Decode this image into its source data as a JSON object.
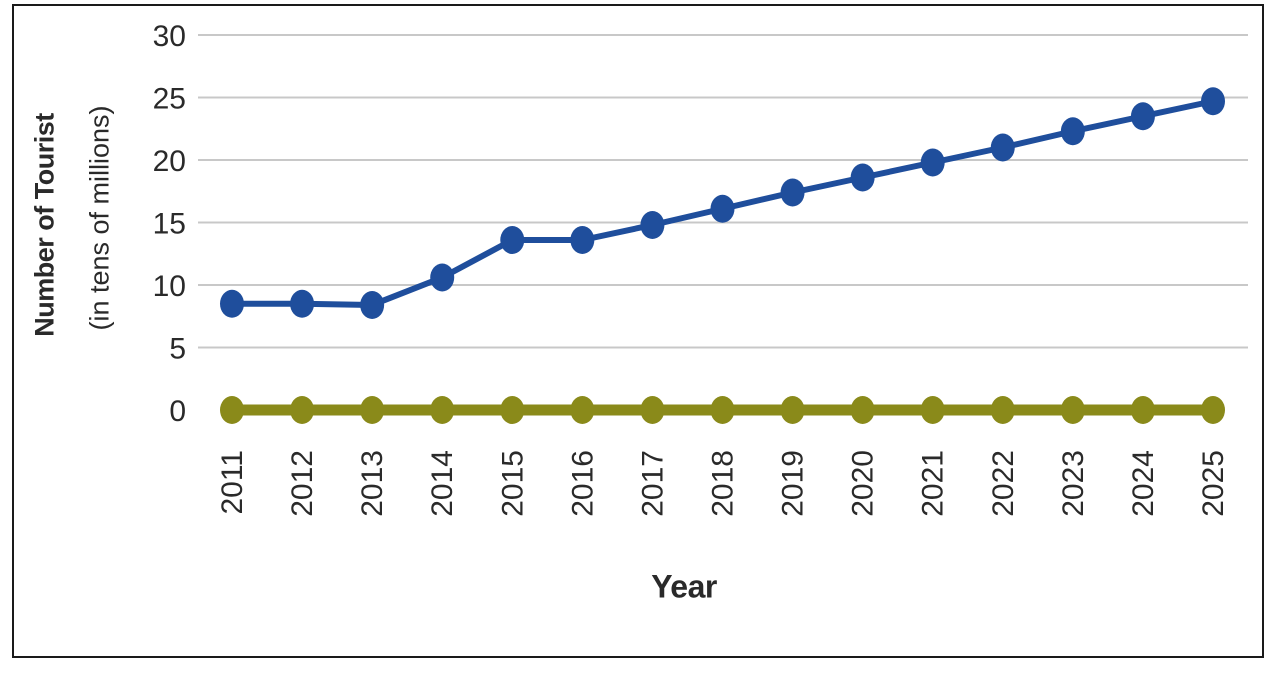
{
  "chart_data": {
    "type": "line",
    "xlabel": "Year",
    "ylabel_line1": "Number of Tourist",
    "ylabel_line2": "(in tens of millions)",
    "categories": [
      "2011",
      "2012",
      "2013",
      "2014",
      "2015",
      "2016",
      "2017",
      "2018",
      "2019",
      "2020",
      "2021",
      "2022",
      "2023",
      "2024",
      "2025"
    ],
    "series": [
      {
        "color": "#1f4e9c",
        "values": [
          8.5,
          8.5,
          8.4,
          10.6,
          13.6,
          13.6,
          14.8,
          16.1,
          17.4,
          18.6,
          19.8,
          21.0,
          22.3,
          23.5,
          24.7
        ]
      },
      {
        "color": "#8a8a1a",
        "values": [
          0,
          0,
          0,
          0,
          0,
          0,
          0,
          0,
          0,
          0,
          0,
          0,
          0,
          0,
          0
        ]
      }
    ],
    "yticks": [
      "0",
      "5",
      "10",
      "15",
      "20",
      "25",
      "30"
    ],
    "ylim": [
      0,
      30
    ],
    "grid": true,
    "gridline_color": "#c8c8c8"
  }
}
